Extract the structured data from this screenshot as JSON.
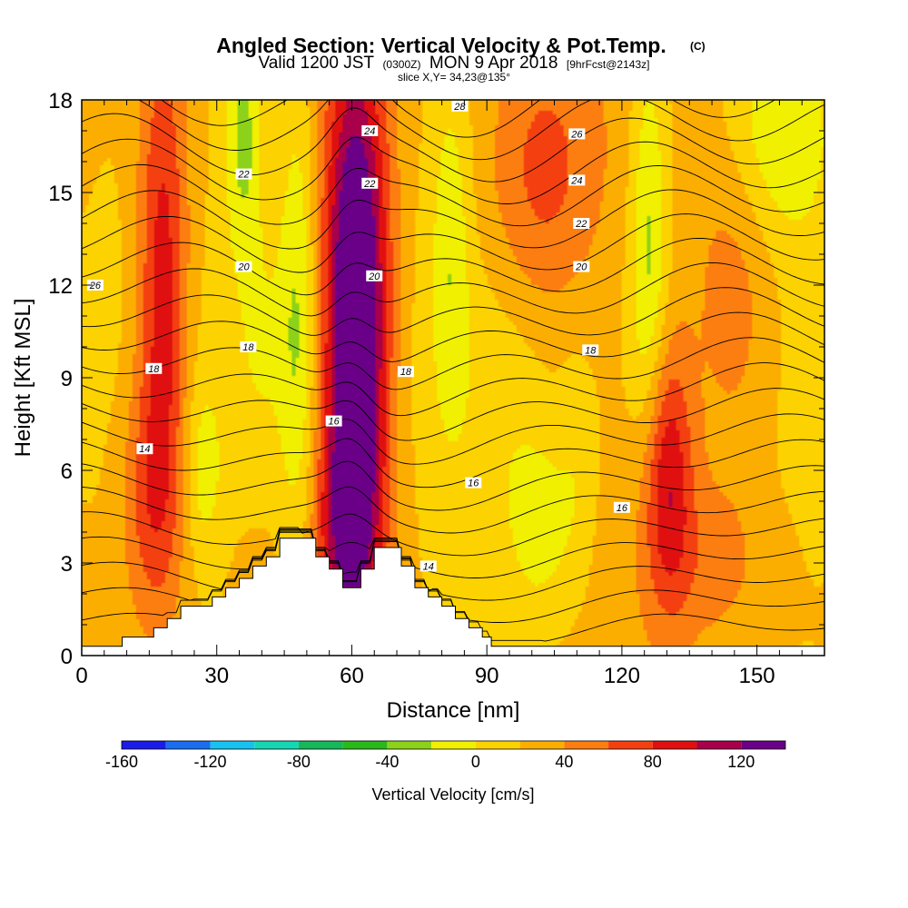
{
  "chart_data": {
    "type": "heatmap",
    "title": "Angled Section: Vertical Velocity & Pot.Temp.",
    "title_unit": "(C)",
    "subtitle": {
      "valid": "Valid 1200 JST",
      "utc": "(0300Z)",
      "date": "MON 9 Apr 2018",
      "forecast": "[9hrFcst@2143z]"
    },
    "slice_label": "slice X,Y= 34,23@135°",
    "xlabel": "Distance [nm]",
    "ylabel": "Height [Kft MSL]",
    "xlim": [
      0,
      165
    ],
    "ylim": [
      0,
      18
    ],
    "x_ticks": [
      0,
      30,
      60,
      90,
      120,
      150
    ],
    "y_ticks": [
      0,
      3,
      6,
      9,
      12,
      15,
      18
    ],
    "x_tick_labels": [
      "0",
      "30",
      "60",
      "90",
      "120",
      "150"
    ],
    "y_tick_labels": [
      "0",
      "3",
      "6",
      "9",
      "12",
      "15",
      "18"
    ],
    "colorbar": {
      "title": "Vertical Velocity [cm/s]",
      "min": -160,
      "max": 140,
      "step": 20,
      "colors": [
        "#1c1ce8",
        "#1a6df0",
        "#18c2f0",
        "#16d6b4",
        "#16b85a",
        "#2ab81a",
        "#8cd21a",
        "#f0f000",
        "#fcd200",
        "#fcae00",
        "#fc7e10",
        "#f44010",
        "#e01010",
        "#a8004a",
        "#6a0088"
      ],
      "labels": [
        "-160",
        "-120",
        "-80",
        "-40",
        "0",
        "40",
        "80",
        "120"
      ],
      "label_values": [
        -160,
        -120,
        -80,
        -40,
        0,
        40,
        80,
        120
      ]
    },
    "terrain": [
      [
        0,
        0.3
      ],
      [
        9,
        0.3
      ],
      [
        9,
        0.6
      ],
      [
        16,
        0.6
      ],
      [
        16,
        0.9
      ],
      [
        19,
        0.9
      ],
      [
        19,
        1.2
      ],
      [
        22,
        1.2
      ],
      [
        22,
        1.6
      ],
      [
        29,
        1.6
      ],
      [
        29,
        1.9
      ],
      [
        32,
        1.9
      ],
      [
        32,
        2.2
      ],
      [
        35,
        2.2
      ],
      [
        35,
        2.5
      ],
      [
        38,
        2.5
      ],
      [
        38,
        2.9
      ],
      [
        41,
        2.9
      ],
      [
        41,
        3.2
      ],
      [
        44,
        3.2
      ],
      [
        44,
        3.8
      ],
      [
        52,
        3.8
      ],
      [
        52,
        3.2
      ],
      [
        55,
        3.2
      ],
      [
        55,
        2.8
      ],
      [
        58,
        2.8
      ],
      [
        58,
        2.2
      ],
      [
        62,
        2.2
      ],
      [
        62,
        2.8
      ],
      [
        65,
        2.8
      ],
      [
        65,
        3.5
      ],
      [
        71,
        3.5
      ],
      [
        71,
        2.9
      ],
      [
        74,
        2.9
      ],
      [
        74,
        2.2
      ],
      [
        77,
        2.2
      ],
      [
        77,
        1.9
      ],
      [
        80,
        1.9
      ],
      [
        80,
        1.6
      ],
      [
        83,
        1.6
      ],
      [
        83,
        1.2
      ],
      [
        86,
        1.2
      ],
      [
        86,
        0.9
      ],
      [
        89,
        0.9
      ],
      [
        89,
        0.6
      ],
      [
        91,
        0.6
      ],
      [
        91,
        0.3
      ],
      [
        165,
        0.3
      ]
    ],
    "velocity_features": [
      {
        "x": 18,
        "y": 12,
        "sx": 4,
        "sy": 6,
        "value": 75
      },
      {
        "x": 15,
        "y": 5,
        "sx": 5,
        "sy": 3,
        "value": 40
      },
      {
        "x": 61,
        "y": 11,
        "sx": 5,
        "sy": 6,
        "value": 150
      },
      {
        "x": 59,
        "y": 4,
        "sx": 5,
        "sy": 2.5,
        "value": 60
      },
      {
        "x": 102,
        "y": 15.5,
        "sx": 9,
        "sy": 3.5,
        "value": 45
      },
      {
        "x": 130,
        "y": 6,
        "sx": 4,
        "sy": 3,
        "value": 75
      },
      {
        "x": 145,
        "y": 11.5,
        "sx": 7,
        "sy": 4,
        "value": 35
      },
      {
        "x": 140,
        "y": 3,
        "sx": 10,
        "sy": 2,
        "value": 25
      },
      {
        "x": 95,
        "y": 8,
        "sx": 6,
        "sy": 3,
        "value": -10
      },
      {
        "x": 36,
        "y": 17,
        "sx": 3,
        "sy": 3,
        "value": -50
      },
      {
        "x": 40,
        "y": 10,
        "sx": 4,
        "sy": 3,
        "value": -20
      },
      {
        "x": 27,
        "y": 6,
        "sx": 3,
        "sy": 2,
        "value": -30
      },
      {
        "x": 48,
        "y": 11,
        "sx": 3,
        "sy": 6,
        "value": -45
      },
      {
        "x": 82,
        "y": 13,
        "sx": 3,
        "sy": 4,
        "value": -35
      },
      {
        "x": 102,
        "y": 4,
        "sx": 5,
        "sy": 2,
        "value": -30
      },
      {
        "x": 126,
        "y": 13,
        "sx": 3,
        "sy": 5,
        "value": -50
      },
      {
        "x": 155,
        "y": 17,
        "sx": 8,
        "sy": 2.5,
        "value": -40
      },
      {
        "x": 110,
        "y": 6,
        "sx": 3,
        "sy": 3,
        "value": -15
      }
    ],
    "theta_levels": [
      14,
      16,
      18,
      20,
      22,
      24,
      26,
      28
    ],
    "contour_labels": [
      {
        "text": "26",
        "x": 3,
        "y": 12
      },
      {
        "text": "18",
        "x": 16,
        "y": 9.3
      },
      {
        "text": "14",
        "x": 14,
        "y": 6.7
      },
      {
        "text": "22",
        "x": 36,
        "y": 15.6
      },
      {
        "text": "20",
        "x": 36,
        "y": 12.6
      },
      {
        "text": "18",
        "x": 37,
        "y": 10
      },
      {
        "text": "24",
        "x": 64,
        "y": 17
      },
      {
        "text": "22",
        "x": 64,
        "y": 15.3
      },
      {
        "text": "20",
        "x": 65,
        "y": 12.3
      },
      {
        "text": "16",
        "x": 56,
        "y": 7.6
      },
      {
        "text": "18",
        "x": 72,
        "y": 9.2
      },
      {
        "text": "16",
        "x": 87,
        "y": 5.6
      },
      {
        "text": "14",
        "x": 77,
        "y": 2.9
      },
      {
        "text": "28",
        "x": 84,
        "y": 17.8
      },
      {
        "text": "26",
        "x": 110,
        "y": 16.9
      },
      {
        "text": "24",
        "x": 110,
        "y": 15.4
      },
      {
        "text": "22",
        "x": 111,
        "y": 14
      },
      {
        "text": "20",
        "x": 111,
        "y": 12.6
      },
      {
        "text": "18",
        "x": 113,
        "y": 9.9
      },
      {
        "text": "16",
        "x": 120,
        "y": 4.8
      }
    ]
  }
}
